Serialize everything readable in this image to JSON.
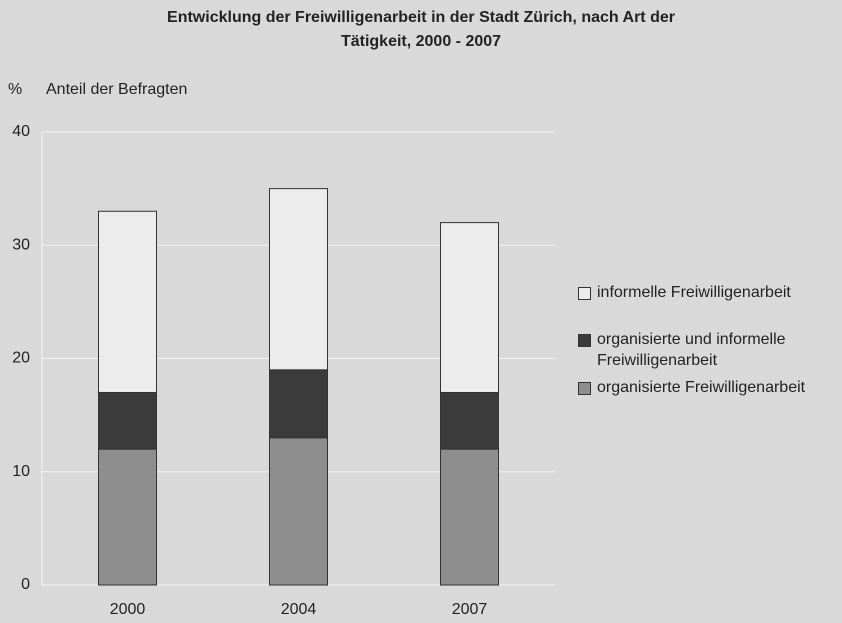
{
  "chart_data": {
    "type": "stacked_bar",
    "title": [
      "Entwicklung der Freiwilligenarbeit in der Stadt Zürich, nach Art der",
      "Tätigkeit, 2000 - 2007"
    ],
    "y_unit": "%",
    "y_label": "Anteil der Befragten",
    "categories": [
      "2000",
      "2004",
      "2007"
    ],
    "series": [
      {
        "name": "informelle Freiwilligenarbeit",
        "color": "#ececec",
        "values": [
          16,
          16,
          15
        ]
      },
      {
        "name": "organisierte und informelle Freiwilligenarbeit",
        "color": "#3b3b3b",
        "values": [
          5,
          6,
          5
        ]
      },
      {
        "name": "organisierte Freiwilligenarbeit",
        "color": "#8e8e8e",
        "values": [
          12,
          13,
          12
        ]
      }
    ],
    "ylim": [
      0,
      40
    ],
    "yticks": [
      0,
      10,
      20,
      30,
      40
    ],
    "grid": true
  }
}
